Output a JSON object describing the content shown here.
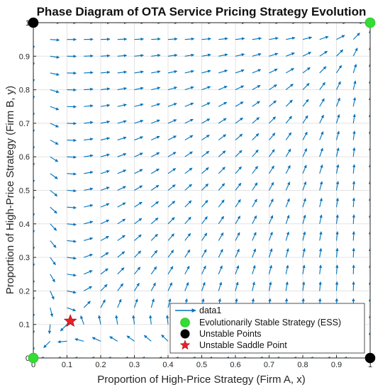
{
  "chart_data": {
    "type": "quiver",
    "title": "Phase Diagram of OTA Service Pricing Strategy Evolution",
    "xlabel": "Proportion of High-Price Strategy (Firm A, x)",
    "ylabel": "Proportion of High-Price Strategy (Firm B, y)",
    "xlim": [
      0,
      1
    ],
    "ylim": [
      0,
      1
    ],
    "x_ticks": [
      "0",
      "0.1",
      "0.2",
      "0.3",
      "0.4",
      "0.5",
      "0.6",
      "0.7",
      "0.8",
      "0.9",
      "1"
    ],
    "y_ticks": [
      "0",
      "0.1",
      "0.2",
      "0.3",
      "0.4",
      "0.5",
      "0.6",
      "0.7",
      "0.8",
      "0.9",
      "1"
    ],
    "grid": true,
    "legend_position": "bottom-right",
    "vector_field": {
      "name": "data1",
      "grid_step": 0.05,
      "saddle": [
        0.11,
        0.11
      ],
      "color": "#0072BD"
    },
    "points": [
      {
        "group": "Evolutionarily Stable Strategy (ESS)",
        "marker": "circle",
        "color": "#33DD33",
        "coords": [
          [
            0,
            0
          ],
          [
            1,
            1
          ]
        ]
      },
      {
        "group": "Unstable Points",
        "marker": "circle",
        "color": "#000000",
        "coords": [
          [
            0,
            1
          ],
          [
            1,
            0
          ]
        ]
      },
      {
        "group": "Unstable Saddle Point",
        "marker": "star",
        "color": "#E8202A",
        "coords": [
          [
            0.11,
            0.11
          ]
        ]
      }
    ],
    "legend": [
      {
        "label": "data1",
        "kind": "arrow",
        "color": "#0072BD"
      },
      {
        "label": "Evolutionarily Stable Strategy (ESS)",
        "kind": "circle",
        "color": "#33DD33"
      },
      {
        "label": "Unstable Points",
        "kind": "circle",
        "color": "#000000"
      },
      {
        "label": "Unstable Saddle Point",
        "kind": "star",
        "color": "#E8202A"
      }
    ]
  }
}
